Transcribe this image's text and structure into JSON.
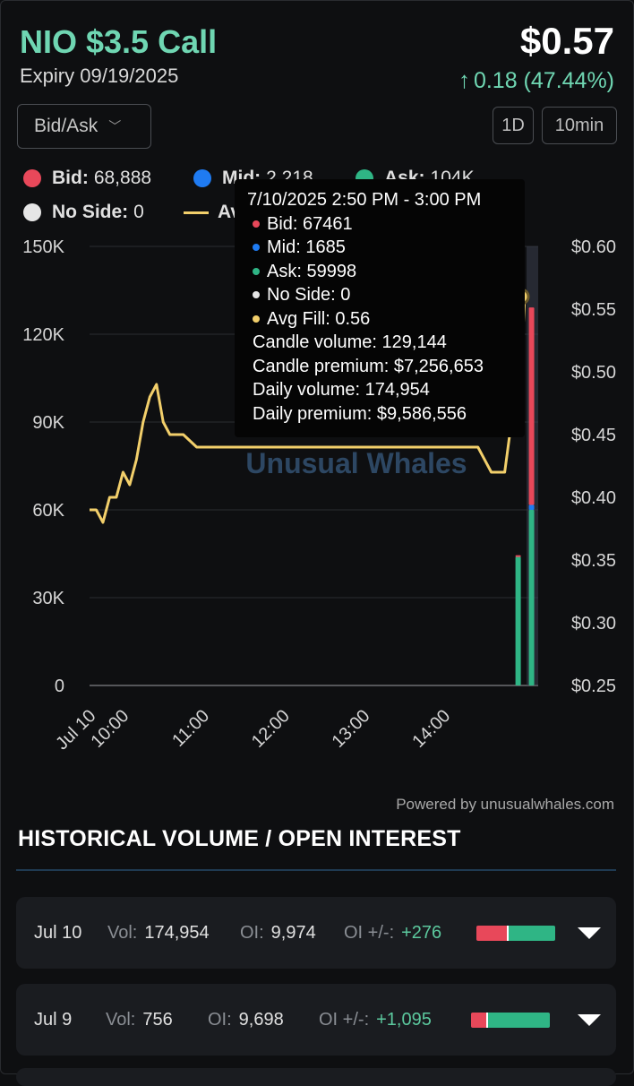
{
  "header": {
    "title": "NIO $3.5 Call",
    "expiry": "Expiry 09/19/2025",
    "price": "$0.57",
    "change_arrow": "↑",
    "change": "0.18 (47.44%)"
  },
  "controls": {
    "dropdown_label": "Bid/Ask",
    "range_label": "1D",
    "interval_label": "10min"
  },
  "colors": {
    "bid": "#e8485a",
    "mid": "#1f7bf2",
    "ask": "#2fb585",
    "no_side": "#e6e6e6",
    "avg_fill": "#f2cf6b",
    "accent": "#6fd6b2"
  },
  "legend": [
    {
      "key": "bid",
      "label": "Bid:",
      "value": "68,888"
    },
    {
      "key": "mid",
      "label": "Mid:",
      "value": "2,218"
    },
    {
      "key": "ask",
      "label": "Ask:",
      "value": "104K"
    },
    {
      "key": "no_side",
      "label": "No Side:",
      "value": "0"
    },
    {
      "key": "avg_fill",
      "label": "Avg",
      "value": ""
    }
  ],
  "tooltip": {
    "time": "7/10/2025 2:50 PM - 3:00 PM",
    "bid": "Bid: 67461",
    "mid": "Mid: 1685",
    "ask": "Ask: 59998",
    "no_side": "No Side: 0",
    "avg_fill": "Avg Fill: 0.56",
    "candle_volume": "Candle volume: 129,144",
    "candle_premium": "Candle premium: $7,256,653",
    "daily_volume": "Daily volume: 174,954",
    "daily_premium": "Daily premium: $9,586,556"
  },
  "chart_data": {
    "type": "bar",
    "watermark": "Unusual Whales",
    "left_axis": {
      "min": 0,
      "max": 150000,
      "ticks": [
        "0",
        "30K",
        "60K",
        "90K",
        "120K",
        "150K"
      ]
    },
    "right_axis": {
      "min": 0.25,
      "max": 0.6,
      "ticks": [
        "$0.25",
        "$0.30",
        "$0.35",
        "$0.40",
        "$0.45",
        "$0.50",
        "$0.55",
        "$0.60"
      ]
    },
    "x_axis": {
      "ticks": [
        "Jul 10",
        "10:00",
        "11:00",
        "12:00",
        "13:00",
        "14:00"
      ]
    },
    "volume_bars": [
      {
        "time": "2:40 PM",
        "bid": 500,
        "mid": 0,
        "ask": 44000
      },
      {
        "time": "2:50 PM",
        "bid": 67461,
        "mid": 1685,
        "ask": 59998
      }
    ],
    "avg_fill_line": [
      {
        "time": "09:30",
        "price": 0.39
      },
      {
        "time": "09:35",
        "price": 0.39
      },
      {
        "time": "09:40",
        "price": 0.38
      },
      {
        "time": "09:45",
        "price": 0.4
      },
      {
        "time": "09:50",
        "price": 0.4
      },
      {
        "time": "09:55",
        "price": 0.42
      },
      {
        "time": "10:00",
        "price": 0.41
      },
      {
        "time": "10:05",
        "price": 0.43
      },
      {
        "time": "10:10",
        "price": 0.46
      },
      {
        "time": "10:15",
        "price": 0.48
      },
      {
        "time": "10:20",
        "price": 0.49
      },
      {
        "time": "10:25",
        "price": 0.46
      },
      {
        "time": "10:30",
        "price": 0.45
      },
      {
        "time": "10:40",
        "price": 0.45
      },
      {
        "time": "10:50",
        "price": 0.44
      },
      {
        "time": "14:20",
        "price": 0.44
      },
      {
        "time": "14:30",
        "price": 0.42
      },
      {
        "time": "14:40",
        "price": 0.42
      },
      {
        "time": "14:45",
        "price": 0.46
      },
      {
        "time": "14:50",
        "price": 0.46
      },
      {
        "time": "14:55",
        "price": 0.56
      }
    ]
  },
  "powered_by": "Powered by unusualwhales.com",
  "section_title": "HISTORICAL VOLUME / OPEN INTEREST",
  "history": [
    {
      "date": "Jul 10",
      "vol_label": "Vol:",
      "vol": "174,954",
      "oi_label": "OI:",
      "oi": "9,974",
      "oi_change_label": "OI +/-:",
      "oi_change": "+276",
      "bid_ratio": 0.39,
      "ask_ratio": 0.61
    },
    {
      "date": "Jul 9",
      "vol_label": "Vol:",
      "vol": "756",
      "oi_label": "OI:",
      "oi": "9,698",
      "oi_change_label": "OI +/-:",
      "oi_change": "+1,095",
      "bid_ratio": 0.2,
      "ask_ratio": 0.8
    }
  ]
}
